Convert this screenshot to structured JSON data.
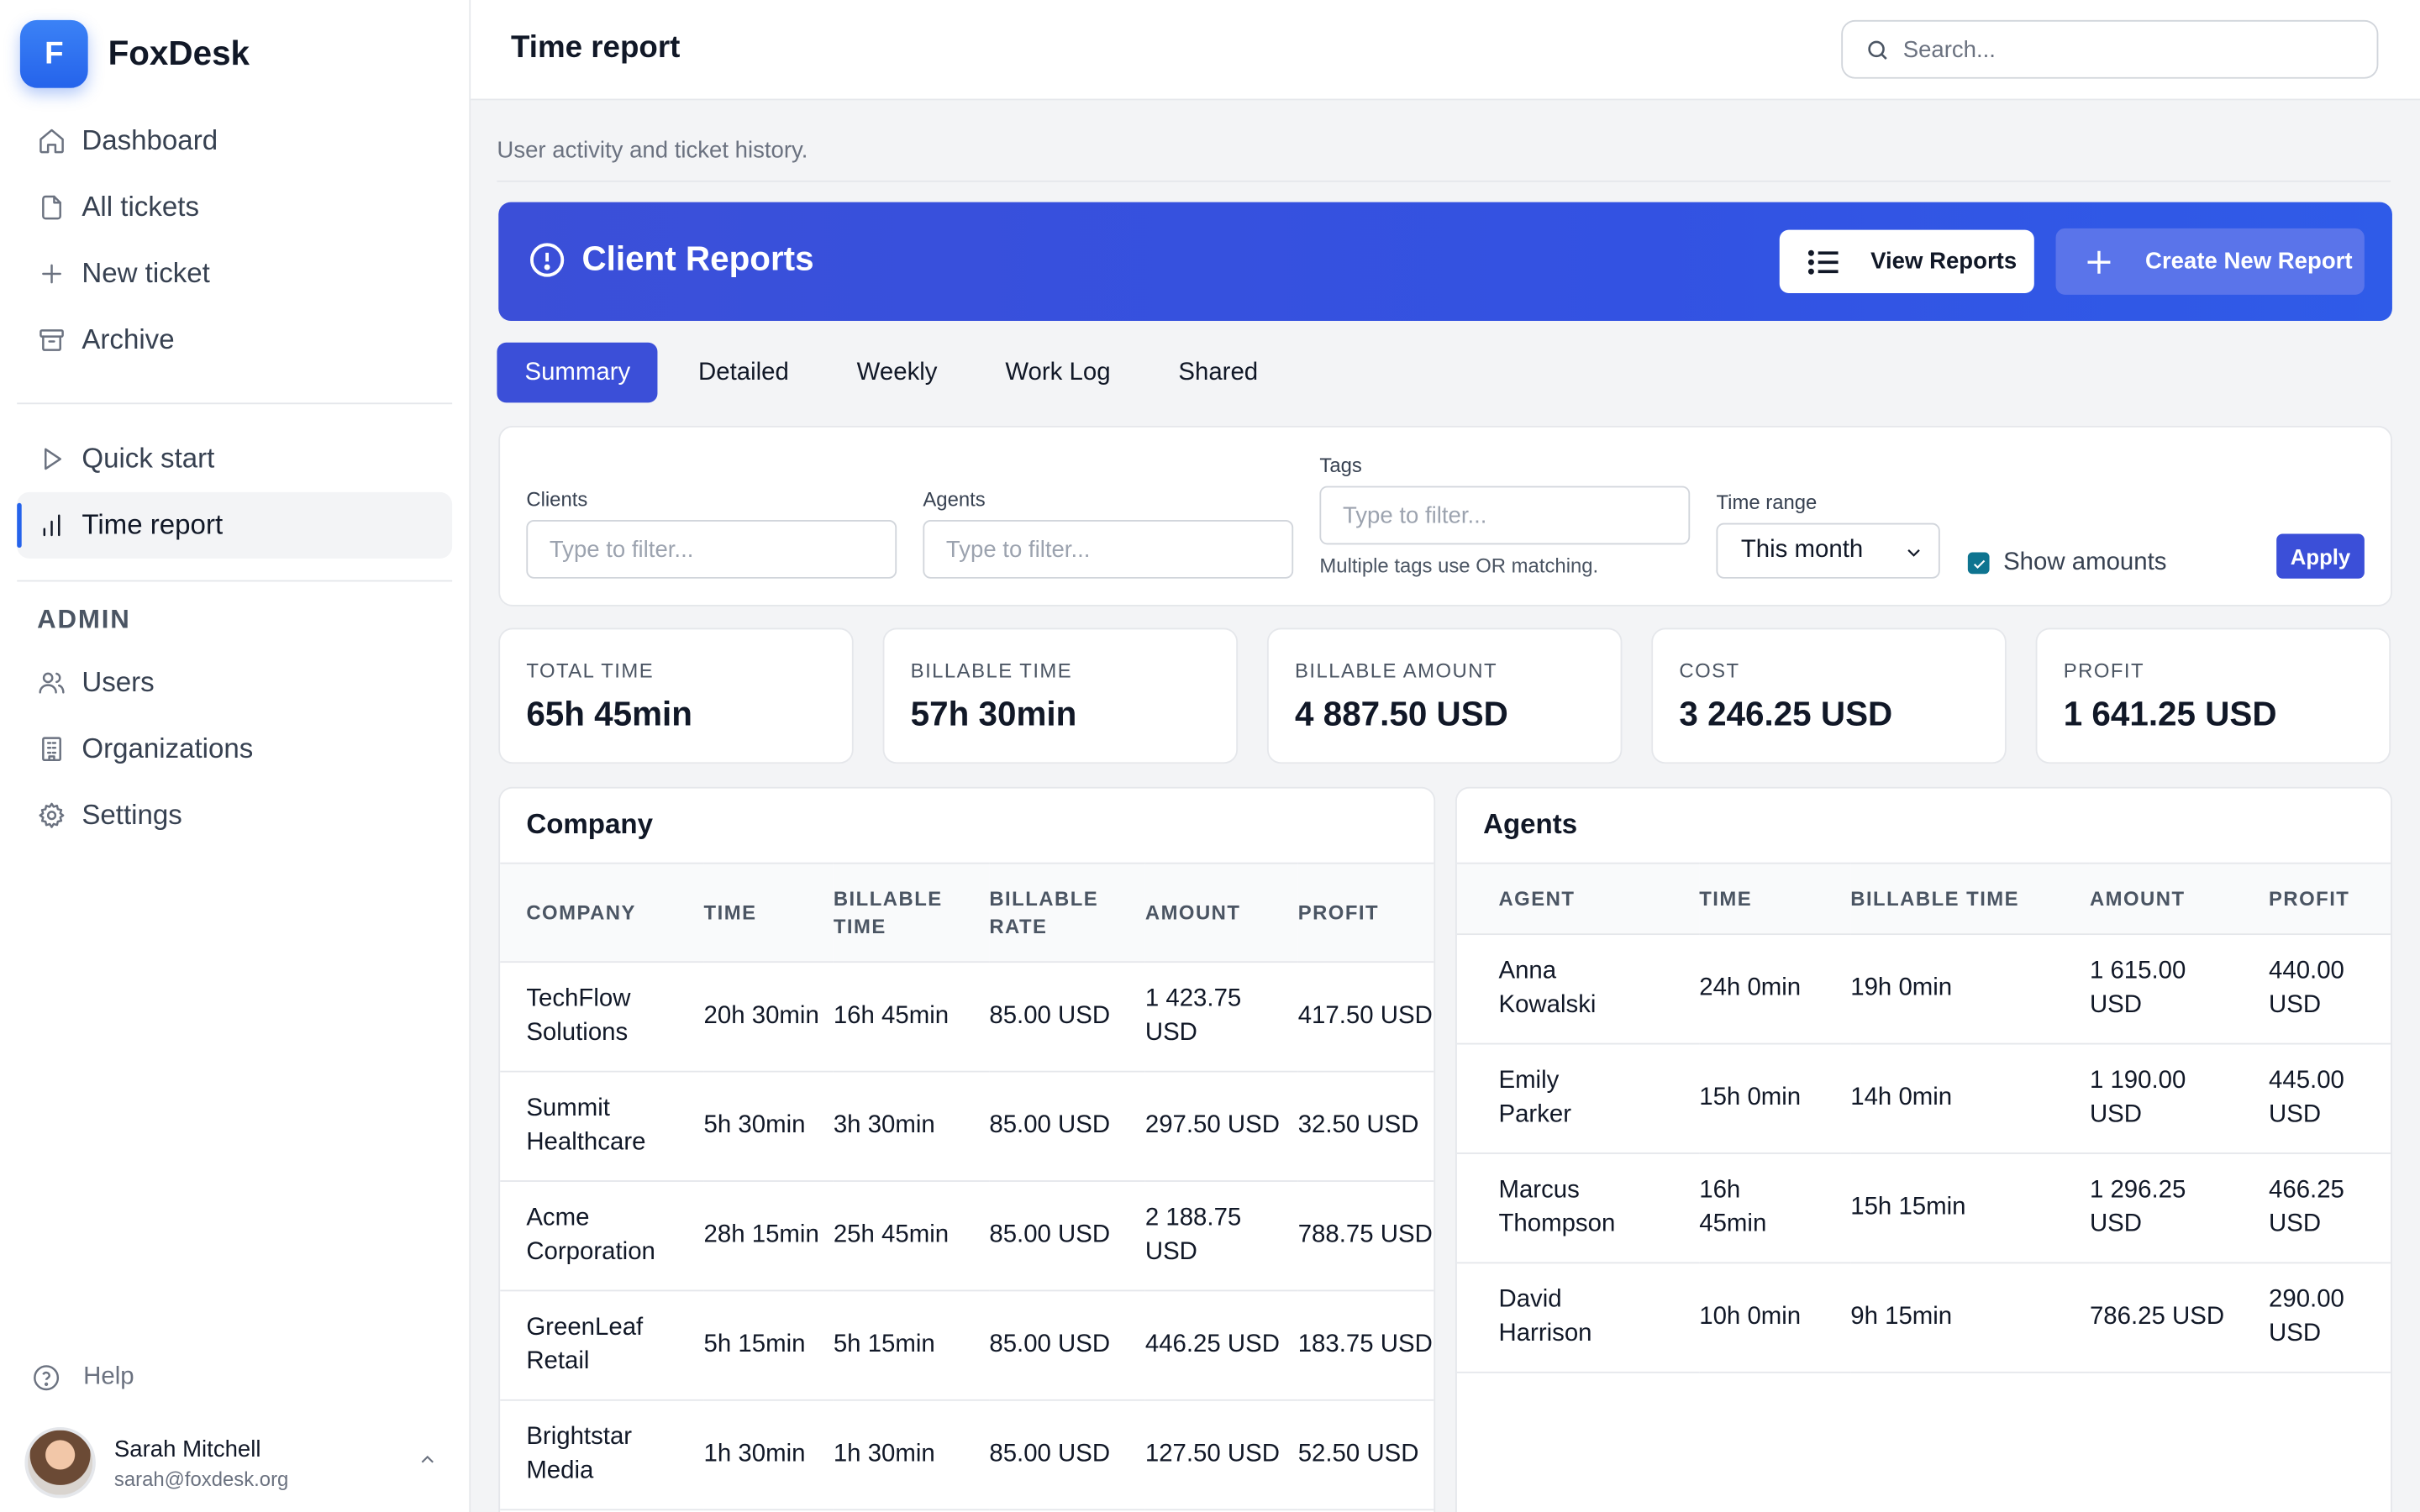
{
  "app": {
    "brand_letter": "F",
    "brand_name": "FoxDesk",
    "accent_color": "#3b4fd8"
  },
  "sidebar": {
    "nav": [
      {
        "label": "Dashboard",
        "icon": "home-icon"
      },
      {
        "label": "All tickets",
        "icon": "file-icon"
      },
      {
        "label": "New ticket",
        "icon": "plus-icon"
      },
      {
        "label": "Archive",
        "icon": "archive-icon"
      }
    ],
    "secondary": [
      {
        "label": "Quick start",
        "icon": "play-icon"
      },
      {
        "label": "Time report",
        "icon": "bar-chart-icon",
        "active": true
      }
    ],
    "admin_title": "ADMIN",
    "admin": [
      {
        "label": "Users",
        "icon": "users-icon"
      },
      {
        "label": "Organizations",
        "icon": "building-icon"
      },
      {
        "label": "Settings",
        "icon": "gear-icon"
      }
    ],
    "help_label": "Help",
    "user": {
      "name": "Sarah Mitchell",
      "email": "sarah@foxdesk.org"
    }
  },
  "header": {
    "title": "Time report",
    "search_placeholder": "Search..."
  },
  "main": {
    "subtitle": "User activity and ticket history.",
    "banner": {
      "title": "Client Reports",
      "view_label": "View Reports",
      "create_label": "Create New Report"
    },
    "tabs": [
      "Summary",
      "Detailed",
      "Weekly",
      "Work Log",
      "Shared"
    ],
    "active_tab": "Summary",
    "filters": {
      "clients_label": "Clients",
      "clients_placeholder": "Type to filter...",
      "agents_label": "Agents",
      "agents_placeholder": "Type to filter...",
      "tags_label": "Tags",
      "tags_placeholder": "Type to filter...",
      "tags_hint": "Multiple tags use OR matching.",
      "time_range_label": "Time range",
      "time_range_value": "This month",
      "show_amounts_label": "Show amounts",
      "show_amounts_checked": true,
      "apply_label": "Apply"
    },
    "stats": [
      {
        "label": "TOTAL TIME",
        "value": "65h 45min"
      },
      {
        "label": "BILLABLE TIME",
        "value": "57h 30min"
      },
      {
        "label": "BILLABLE AMOUNT",
        "value": "4 887.50 USD"
      },
      {
        "label": "COST",
        "value": "3 246.25 USD"
      },
      {
        "label": "PROFIT",
        "value": "1 641.25 USD"
      }
    ],
    "company_table": {
      "title": "Company",
      "columns": [
        "COMPANY",
        "TIME",
        "BILLABLE TIME",
        "BILLABLE RATE",
        "AMOUNT",
        "PROFIT"
      ],
      "rows": [
        [
          "TechFlow Solutions",
          "20h 30min",
          "16h 45min",
          "85.00 USD",
          "1 423.75 USD",
          "417.50 USD"
        ],
        [
          "Summit Healthcare",
          "5h 30min",
          "3h 30min",
          "85.00 USD",
          "297.50 USD",
          "32.50 USD"
        ],
        [
          "Acme Corporation",
          "28h 15min",
          "25h 45min",
          "85.00 USD",
          "2 188.75 USD",
          "788.75 USD"
        ],
        [
          "GreenLeaf Retail",
          "5h 15min",
          "5h 15min",
          "85.00 USD",
          "446.25 USD",
          "183.75 USD"
        ],
        [
          "Brightstar Media",
          "1h 30min",
          "1h 30min",
          "85.00 USD",
          "127.50 USD",
          "52.50 USD"
        ]
      ]
    },
    "agents_table": {
      "title": "Agents",
      "columns": [
        "AGENT",
        "TIME",
        "BILLABLE TIME",
        "AMOUNT",
        "PROFIT"
      ],
      "rows": [
        [
          "Anna Kowalski",
          "24h 0min",
          "19h 0min",
          "1 615.00 USD",
          "440.00 USD"
        ],
        [
          "Emily Parker",
          "15h 0min",
          "14h 0min",
          "1 190.00 USD",
          "445.00 USD"
        ],
        [
          "Marcus Thompson",
          "16h 45min",
          "15h 15min",
          "1 296.25 USD",
          "466.25 USD"
        ],
        [
          "David Harrison",
          "10h 0min",
          "9h 15min",
          "786.25 USD",
          "290.00 USD"
        ]
      ]
    }
  }
}
